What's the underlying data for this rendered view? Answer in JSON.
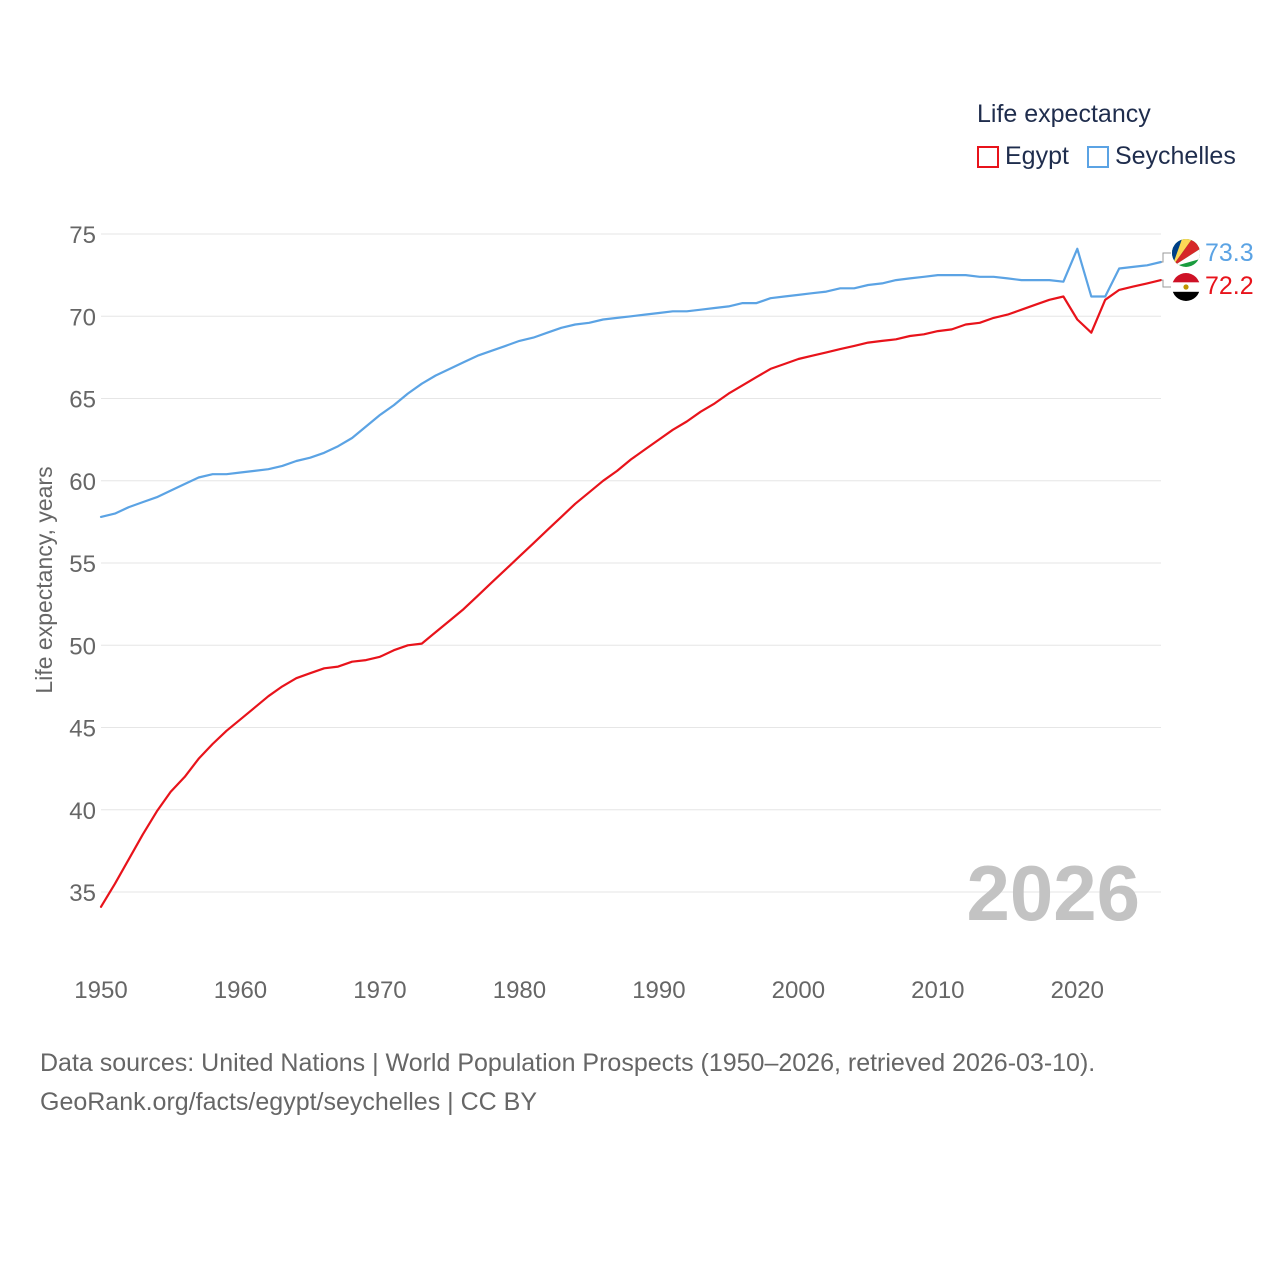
{
  "legend": {
    "title": "Life expectancy",
    "items": [
      {
        "label": "Egypt",
        "color": "#e8131b"
      },
      {
        "label": "Seychelles",
        "color": "#5ba3e4"
      }
    ]
  },
  "year_watermark": "2026",
  "footer": {
    "line1": "Data sources: United Nations | World Population Prospects (1950–2026, retrieved 2026-03-10).",
    "line2": "GeoRank.org/facts/egypt/seychelles | CC BY"
  },
  "chart_data": {
    "type": "line",
    "title": "Life expectancy",
    "xlabel": "",
    "ylabel": "Life expectancy, years",
    "xlim": [
      1950,
      2026
    ],
    "ylim": [
      32.5,
      75
    ],
    "xticks": [
      "1950",
      "1960",
      "1970",
      "1980",
      "1990",
      "2000",
      "2010",
      "2020"
    ],
    "yticks": [
      "35",
      "40",
      "45",
      "50",
      "55",
      "60",
      "65",
      "70",
      "75"
    ],
    "grid": true,
    "x": [
      1950,
      1951,
      1952,
      1953,
      1954,
      1955,
      1956,
      1957,
      1958,
      1959,
      1960,
      1961,
      1962,
      1963,
      1964,
      1965,
      1966,
      1967,
      1968,
      1969,
      1970,
      1971,
      1972,
      1973,
      1974,
      1975,
      1976,
      1977,
      1978,
      1979,
      1980,
      1981,
      1982,
      1983,
      1984,
      1985,
      1986,
      1987,
      1988,
      1989,
      1990,
      1991,
      1992,
      1993,
      1994,
      1995,
      1996,
      1997,
      1998,
      1999,
      2000,
      2001,
      2002,
      2003,
      2004,
      2005,
      2006,
      2007,
      2008,
      2009,
      2010,
      2011,
      2012,
      2013,
      2014,
      2015,
      2016,
      2017,
      2018,
      2019,
      2020,
      2021,
      2022,
      2023,
      2024,
      2025,
      2026
    ],
    "series": [
      {
        "name": "Egypt",
        "color": "#e8131b",
        "end_label": "72.2",
        "values": [
          34.1,
          35.5,
          37.0,
          38.5,
          39.9,
          41.1,
          42.0,
          43.1,
          44.0,
          44.8,
          45.5,
          46.2,
          46.9,
          47.5,
          48.0,
          48.3,
          48.6,
          48.7,
          49.0,
          49.1,
          49.3,
          49.7,
          50.0,
          50.1,
          50.8,
          51.5,
          52.2,
          53.0,
          53.8,
          54.6,
          55.4,
          56.2,
          57.0,
          57.8,
          58.6,
          59.3,
          60.0,
          60.6,
          61.3,
          61.9,
          62.5,
          63.1,
          63.6,
          64.2,
          64.7,
          65.3,
          65.8,
          66.3,
          66.8,
          67.1,
          67.4,
          67.6,
          67.8,
          68.0,
          68.2,
          68.4,
          68.5,
          68.6,
          68.8,
          68.9,
          69.1,
          69.2,
          69.5,
          69.6,
          69.9,
          70.1,
          70.4,
          70.7,
          71.0,
          71.2,
          69.8,
          69.0,
          71.0,
          71.6,
          71.8,
          72.0,
          72.2
        ]
      },
      {
        "name": "Seychelles",
        "color": "#5ba3e4",
        "end_label": "73.3",
        "values": [
          57.8,
          58.0,
          58.4,
          58.7,
          59.0,
          59.4,
          59.8,
          60.2,
          60.4,
          60.4,
          60.5,
          60.6,
          60.7,
          60.9,
          61.2,
          61.4,
          61.7,
          62.1,
          62.6,
          63.3,
          64.0,
          64.6,
          65.3,
          65.9,
          66.4,
          66.8,
          67.2,
          67.6,
          67.9,
          68.2,
          68.5,
          68.7,
          69.0,
          69.3,
          69.5,
          69.6,
          69.8,
          69.9,
          70.0,
          70.1,
          70.2,
          70.3,
          70.3,
          70.4,
          70.5,
          70.6,
          70.8,
          70.8,
          71.1,
          71.2,
          71.3,
          71.4,
          71.5,
          71.7,
          71.7,
          71.9,
          72.0,
          72.2,
          72.3,
          72.4,
          72.5,
          72.5,
          72.5,
          72.4,
          72.4,
          72.3,
          72.2,
          72.2,
          72.2,
          72.1,
          74.1,
          71.2,
          71.2,
          72.9,
          73.0,
          73.1,
          73.3
        ]
      }
    ]
  }
}
